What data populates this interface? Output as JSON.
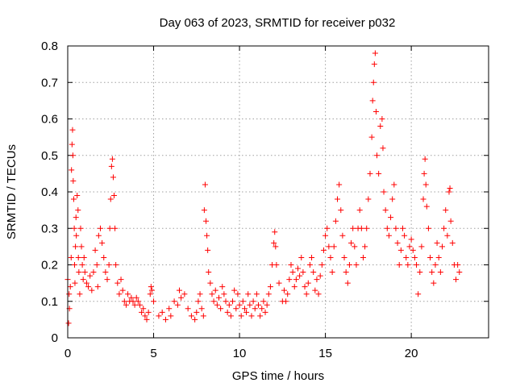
{
  "chart_data": {
    "type": "scatter",
    "title": "Day 063 of 2023, SRMTID for receiver p032",
    "xlabel": "GPS time / hours",
    "ylabel": "SRMTID / TECUs",
    "xlim": [
      0,
      24.5
    ],
    "ylim": [
      0,
      0.8
    ],
    "xticks": [
      "0",
      "5",
      "10",
      "15",
      "20"
    ],
    "xtick_values": [
      0,
      5,
      10,
      15,
      20
    ],
    "yticks": [
      "0",
      "0.1",
      "0.2",
      "0.3",
      "0.4",
      "0.5",
      "0.6",
      "0.7",
      "0.8"
    ],
    "ytick_values": [
      0,
      0.1,
      0.2,
      0.3,
      0.4,
      0.5,
      0.6,
      0.7,
      0.8
    ],
    "grid": true,
    "marker": "+",
    "color": "#ff0000",
    "series": [
      {
        "name": "SRMTID",
        "points": [
          [
            0.0,
            0.16
          ],
          [
            0.05,
            0.04
          ],
          [
            0.08,
            0.12
          ],
          [
            0.1,
            0.08
          ],
          [
            0.15,
            0.14
          ],
          [
            0.2,
            0.22
          ],
          [
            0.22,
            0.46
          ],
          [
            0.25,
            0.53
          ],
          [
            0.28,
            0.57
          ],
          [
            0.3,
            0.5
          ],
          [
            0.32,
            0.43
          ],
          [
            0.35,
            0.38
          ],
          [
            0.38,
            0.3
          ],
          [
            0.4,
            0.2
          ],
          [
            0.42,
            0.15
          ],
          [
            0.45,
            0.25
          ],
          [
            0.48,
            0.33
          ],
          [
            0.5,
            0.28
          ],
          [
            0.55,
            0.39
          ],
          [
            0.6,
            0.35
          ],
          [
            0.62,
            0.22
          ],
          [
            0.65,
            0.18
          ],
          [
            0.7,
            0.12
          ],
          [
            0.75,
            0.3
          ],
          [
            0.8,
            0.25
          ],
          [
            0.85,
            0.2
          ],
          [
            0.9,
            0.16
          ],
          [
            0.95,
            0.22
          ],
          [
            1.0,
            0.18
          ],
          [
            1.1,
            0.15
          ],
          [
            1.2,
            0.14
          ],
          [
            1.3,
            0.17
          ],
          [
            1.4,
            0.13
          ],
          [
            1.5,
            0.18
          ],
          [
            1.6,
            0.24
          ],
          [
            1.7,
            0.2
          ],
          [
            1.75,
            0.14
          ],
          [
            1.8,
            0.28
          ],
          [
            1.9,
            0.3
          ],
          [
            2.0,
            0.26
          ],
          [
            2.1,
            0.22
          ],
          [
            2.2,
            0.18
          ],
          [
            2.3,
            0.16
          ],
          [
            2.4,
            0.2
          ],
          [
            2.45,
            0.3
          ],
          [
            2.5,
            0.38
          ],
          [
            2.55,
            0.47
          ],
          [
            2.6,
            0.49
          ],
          [
            2.65,
            0.44
          ],
          [
            2.7,
            0.39
          ],
          [
            2.75,
            0.3
          ],
          [
            2.8,
            0.2
          ],
          [
            2.9,
            0.15
          ],
          [
            3.0,
            0.12
          ],
          [
            3.1,
            0.16
          ],
          [
            3.2,
            0.13
          ],
          [
            3.3,
            0.1
          ],
          [
            3.4,
            0.09
          ],
          [
            3.5,
            0.12
          ],
          [
            3.6,
            0.1
          ],
          [
            3.7,
            0.11
          ],
          [
            3.8,
            0.1
          ],
          [
            3.9,
            0.09
          ],
          [
            4.0,
            0.11
          ],
          [
            4.1,
            0.1
          ],
          [
            4.2,
            0.09
          ],
          [
            4.3,
            0.07
          ],
          [
            4.4,
            0.08
          ],
          [
            4.5,
            0.06
          ],
          [
            4.6,
            0.05
          ],
          [
            4.7,
            0.07
          ],
          [
            4.8,
            0.12
          ],
          [
            4.85,
            0.14
          ],
          [
            4.9,
            0.13
          ],
          [
            5.0,
            0.1
          ],
          [
            5.3,
            0.06
          ],
          [
            5.5,
            0.07
          ],
          [
            5.7,
            0.05
          ],
          [
            5.9,
            0.08
          ],
          [
            6.0,
            0.06
          ],
          [
            6.2,
            0.1
          ],
          [
            6.4,
            0.09
          ],
          [
            6.5,
            0.13
          ],
          [
            6.6,
            0.11
          ],
          [
            6.8,
            0.12
          ],
          [
            7.0,
            0.08
          ],
          [
            7.2,
            0.06
          ],
          [
            7.4,
            0.05
          ],
          [
            7.5,
            0.07
          ],
          [
            7.6,
            0.1
          ],
          [
            7.7,
            0.12
          ],
          [
            7.8,
            0.08
          ],
          [
            7.9,
            0.06
          ],
          [
            7.95,
            0.35
          ],
          [
            8.0,
            0.42
          ],
          [
            8.05,
            0.32
          ],
          [
            8.1,
            0.28
          ],
          [
            8.15,
            0.24
          ],
          [
            8.2,
            0.18
          ],
          [
            8.3,
            0.15
          ],
          [
            8.4,
            0.12
          ],
          [
            8.5,
            0.1
          ],
          [
            8.6,
            0.13
          ],
          [
            8.7,
            0.09
          ],
          [
            8.8,
            0.11
          ],
          [
            8.9,
            0.08
          ],
          [
            9.0,
            0.14
          ],
          [
            9.1,
            0.12
          ],
          [
            9.2,
            0.1
          ],
          [
            9.3,
            0.07
          ],
          [
            9.4,
            0.09
          ],
          [
            9.5,
            0.06
          ],
          [
            9.6,
            0.1
          ],
          [
            9.7,
            0.13
          ],
          [
            9.8,
            0.08
          ],
          [
            9.9,
            0.12
          ],
          [
            10.0,
            0.09
          ],
          [
            10.1,
            0.06
          ],
          [
            10.2,
            0.1
          ],
          [
            10.3,
            0.08
          ],
          [
            10.4,
            0.07
          ],
          [
            10.5,
            0.12
          ],
          [
            10.6,
            0.09
          ],
          [
            10.7,
            0.06
          ],
          [
            10.8,
            0.1
          ],
          [
            10.9,
            0.08
          ],
          [
            11.0,
            0.12
          ],
          [
            11.1,
            0.09
          ],
          [
            11.2,
            0.06
          ],
          [
            11.3,
            0.08
          ],
          [
            11.4,
            0.1
          ],
          [
            11.5,
            0.07
          ],
          [
            11.6,
            0.09
          ],
          [
            11.7,
            0.12
          ],
          [
            11.8,
            0.14
          ],
          [
            11.9,
            0.2
          ],
          [
            12.0,
            0.26
          ],
          [
            12.05,
            0.29
          ],
          [
            12.1,
            0.25
          ],
          [
            12.15,
            0.2
          ],
          [
            12.3,
            0.15
          ],
          [
            12.5,
            0.1
          ],
          [
            12.6,
            0.13
          ],
          [
            12.7,
            0.1
          ],
          [
            12.8,
            0.12
          ],
          [
            12.9,
            0.16
          ],
          [
            13.0,
            0.2
          ],
          [
            13.1,
            0.18
          ],
          [
            13.2,
            0.14
          ],
          [
            13.3,
            0.16
          ],
          [
            13.4,
            0.19
          ],
          [
            13.5,
            0.17
          ],
          [
            13.6,
            0.22
          ],
          [
            13.7,
            0.18
          ],
          [
            13.8,
            0.14
          ],
          [
            13.9,
            0.12
          ],
          [
            14.0,
            0.15
          ],
          [
            14.1,
            0.2
          ],
          [
            14.2,
            0.22
          ],
          [
            14.3,
            0.18
          ],
          [
            14.4,
            0.13
          ],
          [
            14.5,
            0.16
          ],
          [
            14.6,
            0.12
          ],
          [
            14.7,
            0.17
          ],
          [
            14.8,
            0.2
          ],
          [
            14.9,
            0.24
          ],
          [
            15.0,
            0.28
          ],
          [
            15.1,
            0.3
          ],
          [
            15.2,
            0.25
          ],
          [
            15.3,
            0.22
          ],
          [
            15.4,
            0.18
          ],
          [
            15.5,
            0.25
          ],
          [
            15.6,
            0.32
          ],
          [
            15.7,
            0.38
          ],
          [
            15.8,
            0.42
          ],
          [
            15.9,
            0.35
          ],
          [
            16.0,
            0.28
          ],
          [
            16.1,
            0.22
          ],
          [
            16.2,
            0.18
          ],
          [
            16.3,
            0.15
          ],
          [
            16.4,
            0.2
          ],
          [
            16.5,
            0.26
          ],
          [
            16.6,
            0.3
          ],
          [
            16.7,
            0.25
          ],
          [
            16.8,
            0.2
          ],
          [
            16.9,
            0.3
          ],
          [
            17.0,
            0.35
          ],
          [
            17.1,
            0.3
          ],
          [
            17.2,
            0.22
          ],
          [
            17.3,
            0.25
          ],
          [
            17.4,
            0.3
          ],
          [
            17.5,
            0.38
          ],
          [
            17.6,
            0.45
          ],
          [
            17.7,
            0.55
          ],
          [
            17.75,
            0.65
          ],
          [
            17.8,
            0.7
          ],
          [
            17.85,
            0.75
          ],
          [
            17.9,
            0.78
          ],
          [
            17.95,
            0.62
          ],
          [
            18.0,
            0.5
          ],
          [
            18.1,
            0.45
          ],
          [
            18.2,
            0.58
          ],
          [
            18.3,
            0.6
          ],
          [
            18.35,
            0.52
          ],
          [
            18.4,
            0.4
          ],
          [
            18.5,
            0.35
          ],
          [
            18.6,
            0.3
          ],
          [
            18.7,
            0.28
          ],
          [
            18.8,
            0.33
          ],
          [
            18.9,
            0.38
          ],
          [
            19.0,
            0.42
          ],
          [
            19.1,
            0.3
          ],
          [
            19.2,
            0.26
          ],
          [
            19.3,
            0.2
          ],
          [
            19.4,
            0.24
          ],
          [
            19.5,
            0.3
          ],
          [
            19.6,
            0.28
          ],
          [
            19.7,
            0.22
          ],
          [
            19.8,
            0.2
          ],
          [
            19.9,
            0.25
          ],
          [
            20.0,
            0.27
          ],
          [
            20.1,
            0.24
          ],
          [
            20.2,
            0.22
          ],
          [
            20.3,
            0.2
          ],
          [
            20.4,
            0.12
          ],
          [
            20.5,
            0.18
          ],
          [
            20.6,
            0.25
          ],
          [
            20.7,
            0.38
          ],
          [
            20.75,
            0.45
          ],
          [
            20.8,
            0.49
          ],
          [
            20.85,
            0.42
          ],
          [
            20.9,
            0.36
          ],
          [
            21.0,
            0.3
          ],
          [
            21.1,
            0.22
          ],
          [
            21.2,
            0.18
          ],
          [
            21.3,
            0.15
          ],
          [
            21.4,
            0.2
          ],
          [
            21.5,
            0.26
          ],
          [
            21.6,
            0.22
          ],
          [
            21.7,
            0.18
          ],
          [
            21.8,
            0.25
          ],
          [
            21.9,
            0.3
          ],
          [
            22.0,
            0.35
          ],
          [
            22.1,
            0.28
          ],
          [
            22.2,
            0.4
          ],
          [
            22.25,
            0.41
          ],
          [
            22.3,
            0.32
          ],
          [
            22.4,
            0.26
          ],
          [
            22.5,
            0.2
          ],
          [
            22.6,
            0.16
          ],
          [
            22.7,
            0.2
          ],
          [
            22.8,
            0.18
          ]
        ]
      }
    ]
  }
}
